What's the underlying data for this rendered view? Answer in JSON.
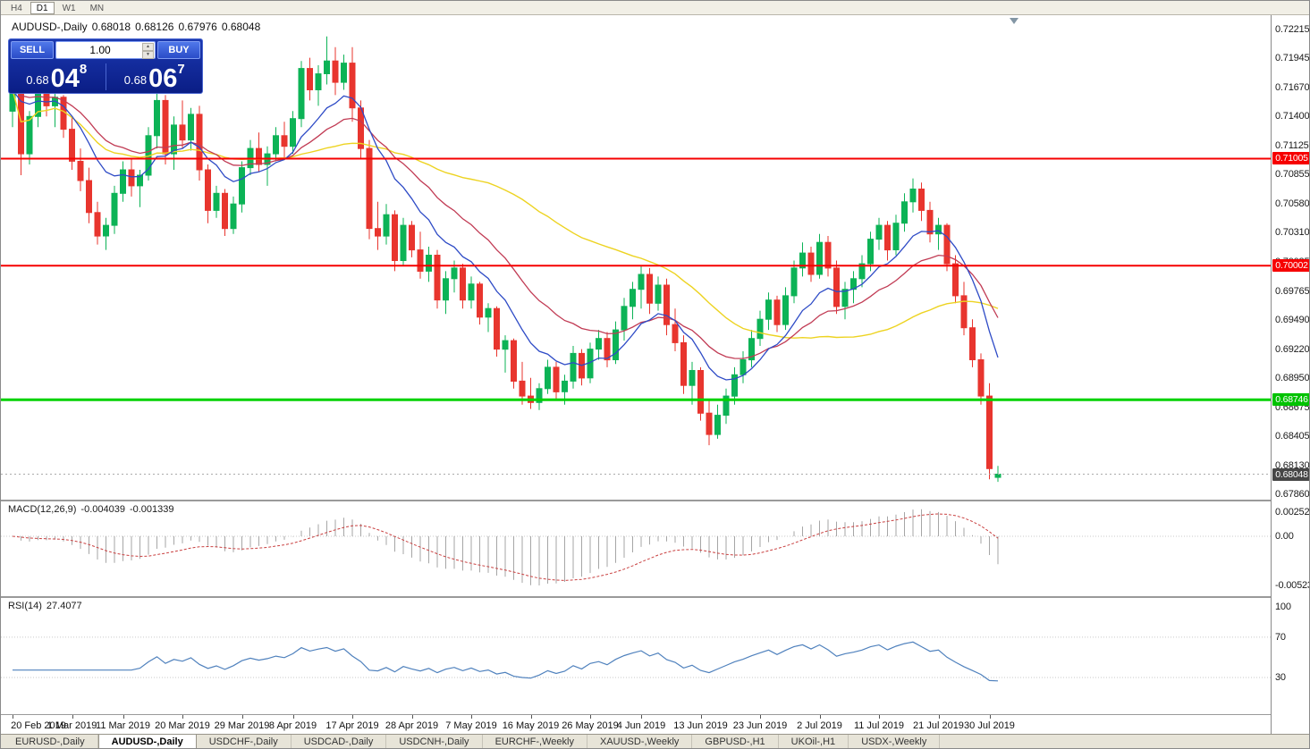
{
  "toolbar": {
    "periods": [
      {
        "label": "H4",
        "active": false
      },
      {
        "label": "D1",
        "active": true
      },
      {
        "label": "W1",
        "active": false
      },
      {
        "label": "MN",
        "active": false
      }
    ]
  },
  "chart_header": {
    "title": "AUDUSD-,Daily",
    "open": "0.68018",
    "high": "0.68126",
    "low": "0.67976",
    "close": "0.68048"
  },
  "trade_panel": {
    "sell_label": "SELL",
    "buy_label": "BUY",
    "volume": "1.00",
    "bid": {
      "prefix": "0.68",
      "big": "04",
      "sup": "8"
    },
    "ask": {
      "prefix": "0.68",
      "big": "06",
      "sup": "7"
    }
  },
  "macd_panel": {
    "label": "MACD(12,26,9)",
    "value_main": "-0.004039",
    "value_signal": "-0.001339",
    "axis_labels": [
      "0.002522",
      "0.00",
      "-0.005234"
    ]
  },
  "rsi_panel": {
    "label": "RSI(14)",
    "value": "27.4077",
    "axis_labels": [
      "100",
      "70",
      "30"
    ],
    "dotted_levels": [
      70,
      30
    ]
  },
  "tabs": {
    "active_index": 1,
    "items": [
      "EURUSD-,Daily",
      "AUDUSD-,Daily",
      "USDCHF-,Daily",
      "USDCAD-,Daily",
      "USDCNH-,Daily",
      "EURCHF-,Weekly",
      "XAUUSD-,Weekly",
      "GBPUSD-,H1",
      "UKOil-,H1",
      "USDX-,Weekly"
    ]
  },
  "chart_data": {
    "type": "candlestick",
    "symbol": "AUDUSD",
    "timeframe": "Daily",
    "last_ohlc": {
      "open": 0.68018,
      "high": 0.68126,
      "low": 0.67976,
      "close": 0.68048
    },
    "current_price": 0.68048,
    "price_axis_labels": [
      "0.72215",
      "0.71945",
      "0.71670",
      "0.71400",
      "0.71125",
      "0.70855",
      "0.70580",
      "0.70310",
      "0.70035",
      "0.69765",
      "0.69490",
      "0.69220",
      "0.68950",
      "0.68675",
      "0.68405",
      "0.68130",
      "0.67860"
    ],
    "price_tags": [
      {
        "label": "0.71005",
        "price": 0.71005,
        "bg": "#f60000",
        "fg": "#ffffff"
      },
      {
        "label": "0.70002",
        "price": 0.70002,
        "bg": "#f60000",
        "fg": "#ffffff"
      },
      {
        "label": "0.68746",
        "price": 0.68746,
        "bg": "#00c200",
        "fg": "#ffffff"
      },
      {
        "label": "0.68048",
        "price": 0.68048,
        "bg": "#464646",
        "fg": "#ffffff"
      }
    ],
    "hlines": [
      {
        "price": 0.71005,
        "color": "#f60000",
        "width": 2,
        "name": "resistance-0-71005"
      },
      {
        "price": 0.70002,
        "color": "#f60000",
        "width": 2,
        "name": "resistance-0-70002"
      },
      {
        "price": 0.68746,
        "color": "#00d200",
        "width": 3,
        "name": "support-0-68746"
      }
    ],
    "date_ticks": [
      {
        "index": 0,
        "label": "20 Feb 2019"
      },
      {
        "index": 7,
        "label": "1 Mar 2019"
      },
      {
        "index": 13,
        "label": "11 Mar 2019"
      },
      {
        "index": 20,
        "label": "20 Mar 2019"
      },
      {
        "index": 27,
        "label": "29 Mar 2019"
      },
      {
        "index": 33,
        "label": "8 Apr 2019"
      },
      {
        "index": 40,
        "label": "17 Apr 2019"
      },
      {
        "index": 47,
        "label": "28 Apr 2019"
      },
      {
        "index": 54,
        "label": "7 May 2019"
      },
      {
        "index": 61,
        "label": "16 May 2019"
      },
      {
        "index": 68,
        "label": "26 May 2019"
      },
      {
        "index": 74,
        "label": "4 Jun 2019"
      },
      {
        "index": 81,
        "label": "13 Jun 2019"
      },
      {
        "index": 88,
        "label": "23 Jun 2019"
      },
      {
        "index": 95,
        "label": "2 Jul 2019"
      },
      {
        "index": 102,
        "label": "11 Jul 2019"
      },
      {
        "index": 109,
        "label": "21 Jul 2019"
      },
      {
        "index": 115,
        "label": "30 Jul 2019"
      }
    ],
    "ma_periods": {
      "fast": 10,
      "mid": 21,
      "slow": 45
    },
    "macd_params": {
      "fast": 12,
      "slow": 26,
      "signal": 9
    },
    "rsi_params": {
      "period": 14
    },
    "colors": {
      "bull": "#0cb356",
      "bear": "#e8352e",
      "ma_fast": "#2e4bc6",
      "ma_mid": "#c13b54",
      "ma_slow": "#edd321",
      "macd_hist": "#a6a6a6",
      "macd_signal": "#c94040",
      "rsi": "#4f81bd"
    },
    "candles": [
      [
        0.7145,
        0.7172,
        0.713,
        0.7165
      ],
      [
        0.7165,
        0.717,
        0.7085,
        0.7105
      ],
      [
        0.7105,
        0.7145,
        0.7095,
        0.714
      ],
      [
        0.714,
        0.7175,
        0.713,
        0.7168
      ],
      [
        0.7168,
        0.7172,
        0.714,
        0.715
      ],
      [
        0.715,
        0.7165,
        0.713,
        0.7158
      ],
      [
        0.7158,
        0.716,
        0.712,
        0.7128
      ],
      [
        0.7128,
        0.714,
        0.709,
        0.7098
      ],
      [
        0.7098,
        0.711,
        0.707,
        0.708
      ],
      [
        0.708,
        0.7092,
        0.704,
        0.705
      ],
      [
        0.705,
        0.706,
        0.702,
        0.7028
      ],
      [
        0.7028,
        0.7045,
        0.7015,
        0.7038
      ],
      [
        0.7038,
        0.7075,
        0.703,
        0.7068
      ],
      [
        0.7068,
        0.7098,
        0.706,
        0.709
      ],
      [
        0.709,
        0.71,
        0.7065,
        0.7075
      ],
      [
        0.7075,
        0.709,
        0.7055,
        0.7085
      ],
      [
        0.7085,
        0.713,
        0.708,
        0.7122
      ],
      [
        0.7122,
        0.7168,
        0.711,
        0.7155
      ],
      [
        0.7155,
        0.716,
        0.7095,
        0.7105
      ],
      [
        0.7105,
        0.714,
        0.709,
        0.7132
      ],
      [
        0.7132,
        0.7155,
        0.711,
        0.7118
      ],
      [
        0.7118,
        0.7148,
        0.7108,
        0.7142
      ],
      [
        0.7142,
        0.715,
        0.708,
        0.709
      ],
      [
        0.709,
        0.7095,
        0.704,
        0.7052
      ],
      [
        0.7052,
        0.7075,
        0.7045,
        0.7068
      ],
      [
        0.7068,
        0.7072,
        0.7028,
        0.7035
      ],
      [
        0.7035,
        0.7065,
        0.703,
        0.7058
      ],
      [
        0.7058,
        0.7098,
        0.705,
        0.7092
      ],
      [
        0.7092,
        0.7118,
        0.7085,
        0.711
      ],
      [
        0.711,
        0.7125,
        0.7088,
        0.7095
      ],
      [
        0.7095,
        0.7112,
        0.7075,
        0.7105
      ],
      [
        0.7105,
        0.713,
        0.7098,
        0.7122
      ],
      [
        0.7122,
        0.7135,
        0.71,
        0.7112
      ],
      [
        0.7112,
        0.7145,
        0.7105,
        0.7138
      ],
      [
        0.7138,
        0.7192,
        0.713,
        0.7185
      ],
      [
        0.7185,
        0.7195,
        0.7155,
        0.7165
      ],
      [
        0.7165,
        0.7188,
        0.715,
        0.718
      ],
      [
        0.718,
        0.7215,
        0.717,
        0.7192
      ],
      [
        0.7192,
        0.7205,
        0.716,
        0.7172
      ],
      [
        0.7172,
        0.7198,
        0.7165,
        0.719
      ],
      [
        0.719,
        0.7205,
        0.7135,
        0.7148
      ],
      [
        0.7148,
        0.7155,
        0.71,
        0.711
      ],
      [
        0.711,
        0.7118,
        0.7025,
        0.7035
      ],
      [
        0.7035,
        0.706,
        0.7015,
        0.7028
      ],
      [
        0.7028,
        0.7058,
        0.702,
        0.7048
      ],
      [
        0.7048,
        0.7052,
        0.6995,
        0.7005
      ],
      [
        0.7005,
        0.7045,
        0.7,
        0.7038
      ],
      [
        0.7038,
        0.7042,
        0.7008,
        0.7015
      ],
      [
        0.7015,
        0.7032,
        0.6988,
        0.6995
      ],
      [
        0.6995,
        0.7018,
        0.6985,
        0.701
      ],
      [
        0.701,
        0.7015,
        0.696,
        0.6968
      ],
      [
        0.6968,
        0.6995,
        0.6955,
        0.6988
      ],
      [
        0.6988,
        0.7005,
        0.6975,
        0.6998
      ],
      [
        0.6998,
        0.7002,
        0.696,
        0.6968
      ],
      [
        0.6968,
        0.699,
        0.696,
        0.6983
      ],
      [
        0.6983,
        0.6985,
        0.6945,
        0.6952
      ],
      [
        0.6952,
        0.6965,
        0.6938,
        0.696
      ],
      [
        0.696,
        0.6962,
        0.6915,
        0.6922
      ],
      [
        0.6922,
        0.6935,
        0.69,
        0.693
      ],
      [
        0.693,
        0.6932,
        0.6885,
        0.6892
      ],
      [
        0.6892,
        0.691,
        0.687,
        0.6878
      ],
      [
        0.6878,
        0.6895,
        0.6866,
        0.6872
      ],
      [
        0.6872,
        0.689,
        0.6865,
        0.6885
      ],
      [
        0.6885,
        0.6912,
        0.688,
        0.6905
      ],
      [
        0.6905,
        0.691,
        0.6875,
        0.6882
      ],
      [
        0.6882,
        0.6898,
        0.687,
        0.6892
      ],
      [
        0.6892,
        0.6925,
        0.6885,
        0.6918
      ],
      [
        0.6918,
        0.6922,
        0.6888,
        0.6895
      ],
      [
        0.6895,
        0.6928,
        0.689,
        0.6922
      ],
      [
        0.6922,
        0.694,
        0.6912,
        0.6932
      ],
      [
        0.6932,
        0.6938,
        0.6905,
        0.6912
      ],
      [
        0.6912,
        0.6948,
        0.6908,
        0.694
      ],
      [
        0.694,
        0.697,
        0.693,
        0.6962
      ],
      [
        0.6962,
        0.6985,
        0.695,
        0.6978
      ],
      [
        0.6978,
        0.7,
        0.696,
        0.6992
      ],
      [
        0.6992,
        0.6998,
        0.6955,
        0.6965
      ],
      [
        0.6965,
        0.699,
        0.6958,
        0.6982
      ],
      [
        0.6982,
        0.6988,
        0.6935,
        0.6945
      ],
      [
        0.6945,
        0.696,
        0.692,
        0.6928
      ],
      [
        0.6928,
        0.6935,
        0.688,
        0.6888
      ],
      [
        0.6888,
        0.691,
        0.687,
        0.6902
      ],
      [
        0.6902,
        0.6905,
        0.6855,
        0.6862
      ],
      [
        0.6862,
        0.6875,
        0.6832,
        0.6842
      ],
      [
        0.6842,
        0.687,
        0.6838,
        0.686
      ],
      [
        0.686,
        0.6885,
        0.6852,
        0.6878
      ],
      [
        0.6878,
        0.6905,
        0.687,
        0.6898
      ],
      [
        0.6898,
        0.692,
        0.689,
        0.6912
      ],
      [
        0.6912,
        0.694,
        0.6905,
        0.6932
      ],
      [
        0.6932,
        0.6958,
        0.6925,
        0.695
      ],
      [
        0.695,
        0.6975,
        0.694,
        0.6968
      ],
      [
        0.6968,
        0.6972,
        0.6938,
        0.6945
      ],
      [
        0.6945,
        0.698,
        0.694,
        0.6972
      ],
      [
        0.6972,
        0.7005,
        0.6965,
        0.6998
      ],
      [
        0.6998,
        0.7022,
        0.699,
        0.7012
      ],
      [
        0.7012,
        0.7018,
        0.6985,
        0.6992
      ],
      [
        0.6992,
        0.703,
        0.6988,
        0.7022
      ],
      [
        0.7022,
        0.7028,
        0.699,
        0.6998
      ],
      [
        0.6998,
        0.7005,
        0.6955,
        0.6962
      ],
      [
        0.6962,
        0.6985,
        0.695,
        0.6978
      ],
      [
        0.6978,
        0.6995,
        0.6965,
        0.6988
      ],
      [
        0.6988,
        0.701,
        0.698,
        0.7002
      ],
      [
        0.7002,
        0.7032,
        0.6995,
        0.7025
      ],
      [
        0.7025,
        0.7045,
        0.7015,
        0.7038
      ],
      [
        0.7038,
        0.7042,
        0.7005,
        0.7015
      ],
      [
        0.7015,
        0.7048,
        0.701,
        0.704
      ],
      [
        0.704,
        0.7068,
        0.7032,
        0.706
      ],
      [
        0.706,
        0.7082,
        0.705,
        0.7072
      ],
      [
        0.7072,
        0.7078,
        0.7042,
        0.7052
      ],
      [
        0.7052,
        0.706,
        0.7022,
        0.703
      ],
      [
        0.703,
        0.7045,
        0.7015,
        0.7038
      ],
      [
        0.7038,
        0.704,
        0.6995,
        0.7002
      ],
      [
        0.7002,
        0.701,
        0.6965,
        0.6972
      ],
      [
        0.6972,
        0.6985,
        0.6935,
        0.6942
      ],
      [
        0.6942,
        0.695,
        0.6905,
        0.6912
      ],
      [
        0.6912,
        0.6918,
        0.687,
        0.6878
      ],
      [
        0.6878,
        0.689,
        0.68,
        0.681
      ],
      [
        0.68018,
        0.68126,
        0.67976,
        0.68048
      ]
    ]
  }
}
